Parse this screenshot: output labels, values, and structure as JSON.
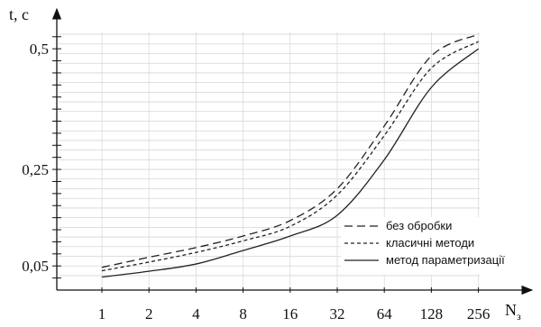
{
  "chart_data": {
    "type": "line",
    "title": "",
    "xlabel": "N",
    "xlabel_sub": "з",
    "ylabel": "t, c",
    "x_scale": "log2",
    "categories": [
      "1",
      "2",
      "4",
      "8",
      "16",
      "32",
      "64",
      "128",
      "256"
    ],
    "x": [
      1,
      2,
      4,
      8,
      16,
      32,
      64,
      128,
      256
    ],
    "ylim": [
      0.0,
      0.56
    ],
    "y_ticks": [
      {
        "value": 0.05,
        "label": "0,05"
      },
      {
        "value": 0.25,
        "label": "0,25"
      },
      {
        "value": 0.5,
        "label": "0,5"
      }
    ],
    "grid": true,
    "legend_position": "lower-right",
    "series": [
      {
        "name": "без обробки",
        "style": "dashed",
        "values": [
          0.047,
          0.068,
          0.088,
          0.112,
          0.144,
          0.21,
          0.34,
          0.485,
          0.53
        ]
      },
      {
        "name": "класичні методи",
        "style": "dotted",
        "values": [
          0.04,
          0.058,
          0.078,
          0.102,
          0.132,
          0.197,
          0.32,
          0.46,
          0.515
        ]
      },
      {
        "name": "метод параметризації",
        "style": "solid",
        "values": [
          0.027,
          0.039,
          0.054,
          0.082,
          0.112,
          0.155,
          0.27,
          0.42,
          0.5
        ]
      }
    ]
  }
}
